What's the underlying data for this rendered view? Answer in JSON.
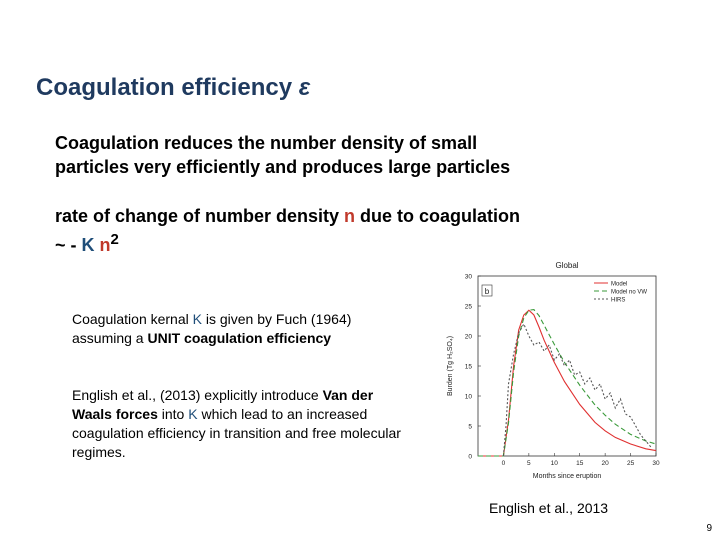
{
  "title": {
    "text": "Coagulation efficiency ",
    "symbol": "ε"
  },
  "para1": {
    "line1": "Coagulation reduces the number density of small",
    "line2": "particles very efficiently and produces large particles"
  },
  "para2": {
    "line1_a": "rate of change of number density ",
    "line1_n": "n",
    "line1_b": " due to coagulation",
    "line2_a": "~ - ",
    "line2_k": "K",
    "line2_sp": " ",
    "line2_n": "n",
    "line2_sup": "2"
  },
  "note1": {
    "a": "Coagulation kernal ",
    "k": "K",
    "b": " is given by Fuch (1964) assuming a ",
    "c": "UNIT coagulation efficiency"
  },
  "note2": {
    "a": "English et al., (2013) explicitly introduce ",
    "b": "Van der Waals forces",
    "c": " into ",
    "k": "K",
    "d": " which lead to an increased coagulation efficiency in transition and free molecular regimes."
  },
  "caption": "English et al., 2013",
  "page_number": "9",
  "chart_data": {
    "type": "line",
    "title": "Global",
    "panel_label": "b",
    "xlabel": "Months since eruption",
    "ylabel": "Burden (Tg H₂SO₄)",
    "xlim": [
      -5,
      30
    ],
    "ylim": [
      0,
      30
    ],
    "xticks": [
      0,
      5,
      10,
      15,
      20,
      25,
      30
    ],
    "yticks": [
      0,
      5,
      10,
      15,
      20,
      25,
      30
    ],
    "xtick_labels": [
      "0",
      "5",
      "10",
      "15",
      "20",
      "25",
      "30"
    ],
    "ytick_labels": [
      "0",
      "5",
      "10",
      "15",
      "20",
      "25",
      "30"
    ],
    "legend_position": "top-right",
    "series": [
      {
        "name": "Model",
        "color": "#e03030",
        "dash": "",
        "x": [
          -5,
          0,
          1,
          2,
          3,
          4,
          5,
          6,
          7,
          8,
          10,
          12,
          15,
          18,
          20,
          22,
          25,
          28,
          30
        ],
        "y": [
          0,
          0,
          6,
          15,
          21,
          23.5,
          24.3,
          23.5,
          21.5,
          19.3,
          15.6,
          12.4,
          8.6,
          5.6,
          4.2,
          3.1,
          2.0,
          1.2,
          0.9
        ]
      },
      {
        "name": "Model no VW",
        "color": "#3a9a3a",
        "dash": "5,3",
        "x": [
          -5,
          0,
          1,
          2,
          3,
          4,
          5,
          6,
          7,
          8,
          10,
          12,
          15,
          18,
          20,
          22,
          25,
          28,
          30
        ],
        "y": [
          0,
          0,
          5.5,
          14,
          20,
          23,
          24.3,
          24.4,
          23.4,
          21.8,
          18.6,
          15.6,
          11.8,
          8.5,
          6.8,
          5.3,
          3.6,
          2.5,
          2.0
        ]
      },
      {
        "name": "HIRS",
        "color": "#555555",
        "dash": "2,2",
        "x": [
          0,
          0.5,
          1,
          2,
          3,
          4,
          5,
          6,
          7,
          8,
          9,
          10,
          11,
          12,
          13,
          14,
          15,
          16,
          17,
          18,
          19,
          20,
          21,
          22,
          23,
          24,
          25,
          26,
          27,
          28,
          29
        ],
        "y": [
          0,
          5,
          12,
          17,
          20.5,
          22,
          20,
          18.5,
          19,
          17.5,
          18.5,
          16,
          17,
          15,
          16,
          13.5,
          14,
          12,
          13,
          11,
          12,
          9.5,
          10.5,
          8,
          9.5,
          7,
          6.5,
          5,
          3.5,
          2.5,
          1.5
        ]
      }
    ]
  }
}
